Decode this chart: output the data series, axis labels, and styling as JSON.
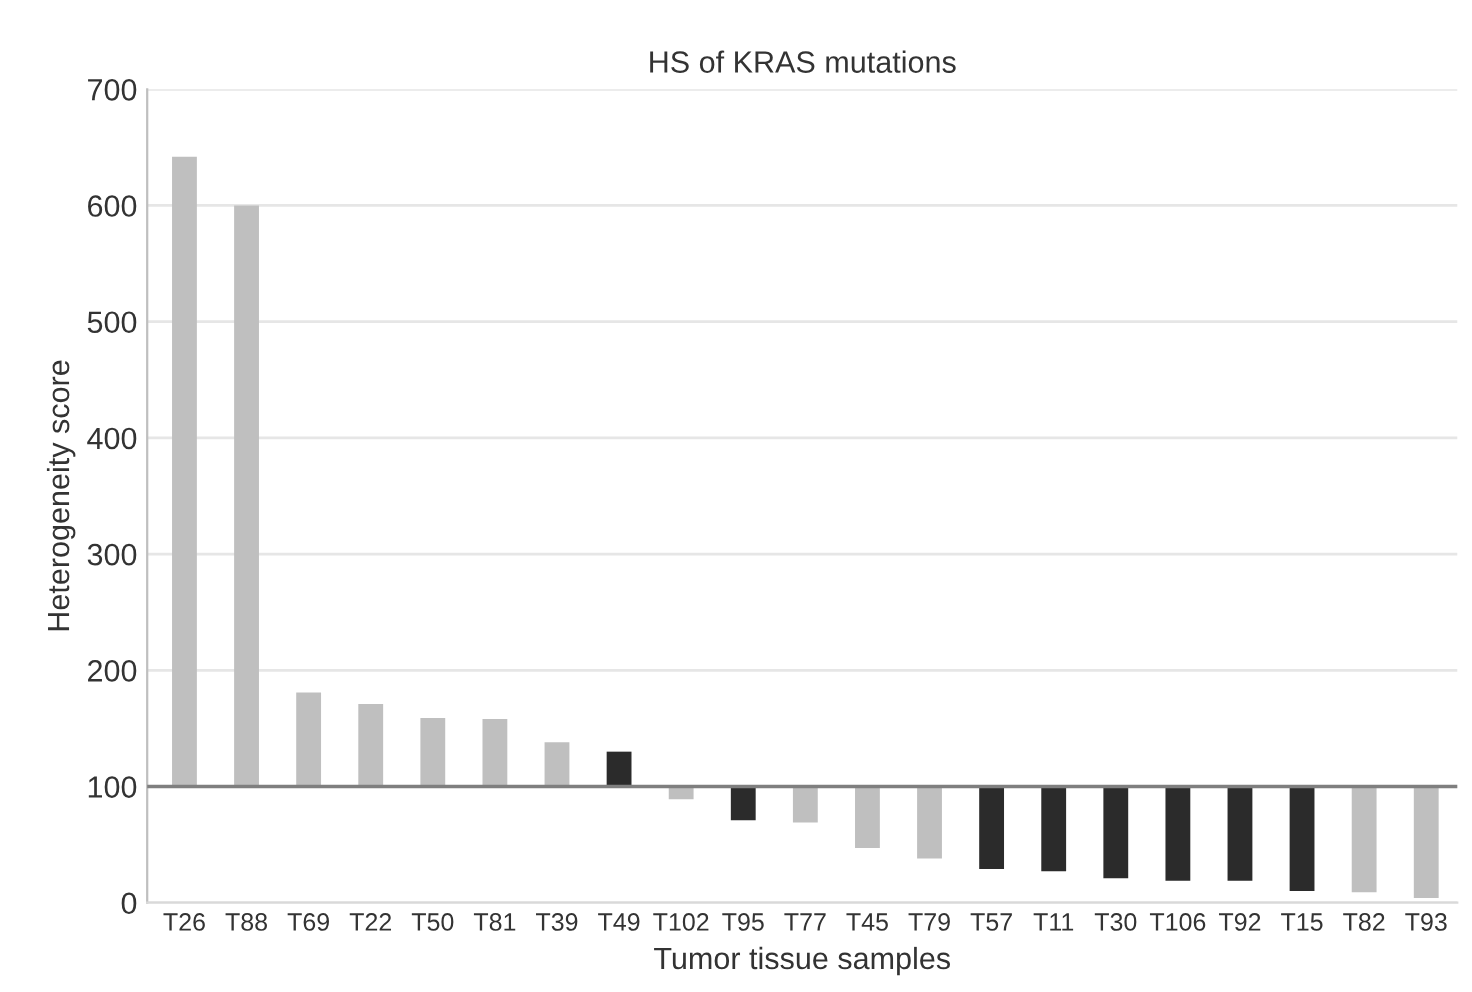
{
  "chart_data": {
    "type": "bar",
    "title": "HS of KRAS mutations",
    "xlabel": "Tumor tissue samples",
    "ylabel": "Heterogeneity score",
    "categories": [
      "T26",
      "T88",
      "T69",
      "T22",
      "T50",
      "T81",
      "T39",
      "T49",
      "T102",
      "T95",
      "T77",
      "T45",
      "T79",
      "T57",
      "T11",
      "T30",
      "T106",
      "T92",
      "T15",
      "T82",
      "T93"
    ],
    "base": [
      100,
      100,
      100,
      100,
      100,
      100,
      100,
      100,
      100,
      100,
      100,
      100,
      100,
      100,
      100,
      100,
      100,
      100,
      100,
      100,
      100
    ],
    "values": [
      542,
      500,
      81,
      71,
      59,
      58,
      38,
      30,
      -11,
      -29,
      -31,
      -53,
      -62,
      -71,
      -73,
      -79,
      -81,
      -81,
      -90,
      -91,
      -96
    ],
    "colors": [
      "#bfbfbf",
      "#bfbfbf",
      "#bfbfbf",
      "#bfbfbf",
      "#bfbfbf",
      "#bfbfbf",
      "#bfbfbf",
      "#2b2b2b",
      "#bfbfbf",
      "#2b2b2b",
      "#bfbfbf",
      "#bfbfbf",
      "#bfbfbf",
      "#2b2b2b",
      "#2b2b2b",
      "#2b2b2b",
      "#2b2b2b",
      "#2b2b2b",
      "#2b2b2b",
      "#bfbfbf",
      "#bfbfbf"
    ],
    "ylim": [
      0,
      700
    ],
    "yticks": [
      0,
      100,
      200,
      300,
      400,
      500,
      600,
      700
    ],
    "grid": "y",
    "ref_lines": [
      {
        "axis": "y",
        "value": 100,
        "color": "#7f7f7f"
      }
    ]
  }
}
